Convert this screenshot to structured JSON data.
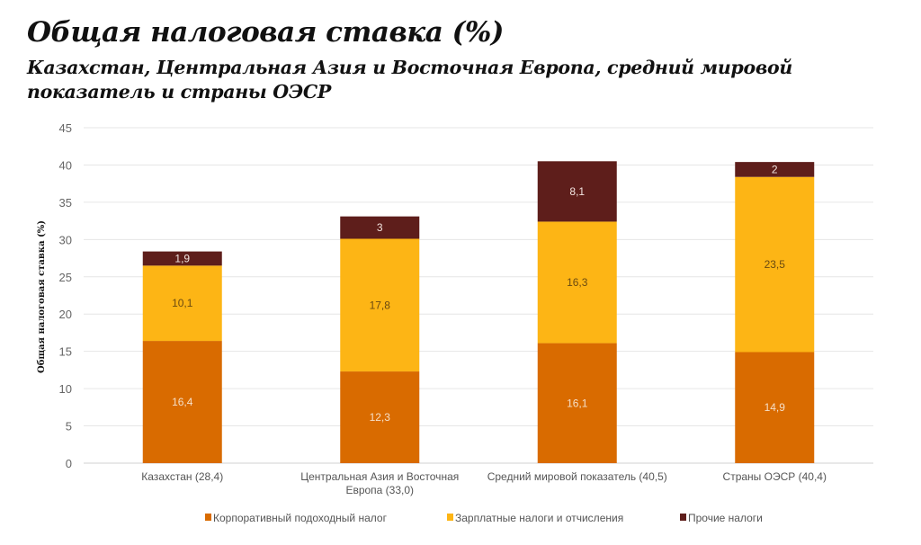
{
  "chart_data": {
    "type": "bar",
    "stacked": true,
    "title": "Общая налоговая ставка (%)",
    "subtitle": "Казахстан, Центральная Азия и Восточная Европа, средний мировой показатель и страны ОЭСР",
    "xlabel": "",
    "ylabel": "Общая налоговая ставка (%)",
    "ylim": [
      0,
      45
    ],
    "yticks": [
      0,
      5,
      10,
      15,
      20,
      25,
      30,
      35,
      40,
      45
    ],
    "grid": true,
    "legend_position": "bottom",
    "categories": [
      [
        "Казахстан (28,4)"
      ],
      [
        "Центральная Азия и Восточная",
        "Европа (33,0)"
      ],
      [
        "Средний мировой показатель (40,5)"
      ],
      [
        "Страны ОЭСР (40,4)"
      ]
    ],
    "series": [
      {
        "name": "Корпоративный подоходный налог",
        "color": "#D96B00",
        "label_color": "#F5E0C8",
        "values": [
          16.4,
          12.3,
          16.1,
          14.9
        ],
        "labels": [
          "16,4",
          "12,3",
          "16,1",
          "14,9"
        ]
      },
      {
        "name": "Зарплатные налоги и отчисления",
        "color": "#FDB515",
        "label_color": "#6B4A10",
        "values": [
          10.1,
          17.8,
          16.3,
          23.5
        ],
        "labels": [
          "10,1",
          "17,8",
          "16,3",
          "23,5"
        ]
      },
      {
        "name": "Прочие налоги",
        "color": "#5E1E1B",
        "label_color": "#F2E4E0",
        "values": [
          1.9,
          3,
          8.1,
          2
        ],
        "labels": [
          "1,9",
          "3",
          "8,1",
          "2"
        ]
      }
    ]
  }
}
